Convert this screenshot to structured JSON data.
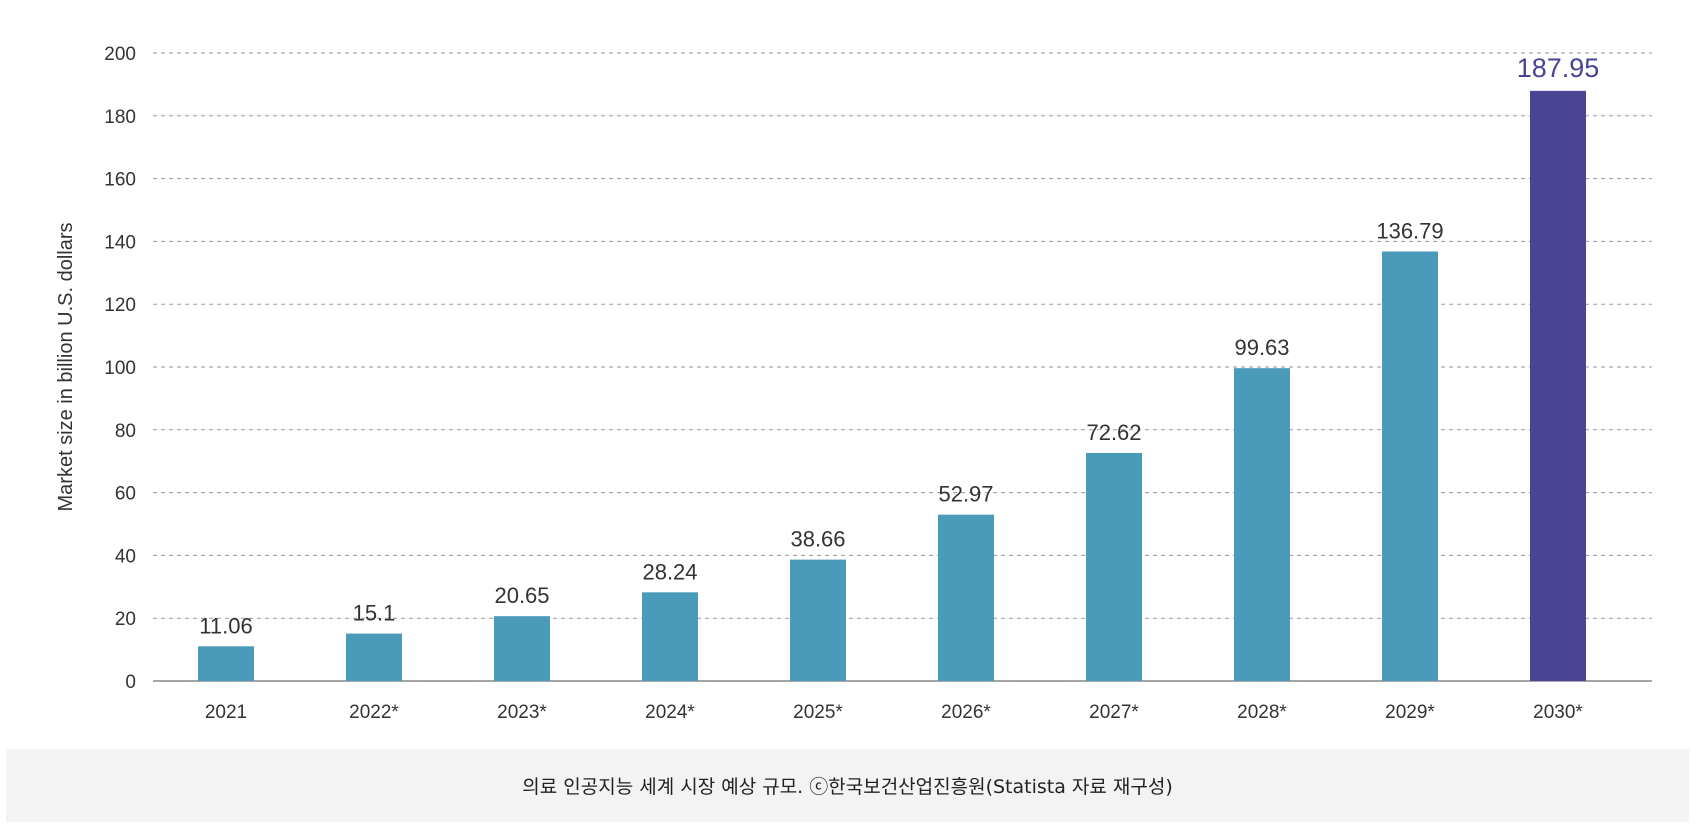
{
  "chart_data": {
    "type": "bar",
    "categories": [
      "2021",
      "2022*",
      "2023*",
      "2024*",
      "2025*",
      "2026*",
      "2027*",
      "2028*",
      "2029*",
      "2030*"
    ],
    "values": [
      11.06,
      15.1,
      20.65,
      28.24,
      38.66,
      52.97,
      72.62,
      99.63,
      136.79,
      187.95
    ],
    "data_labels": [
      "11.06",
      "15.1",
      "20.65",
      "28.24",
      "38.66",
      "52.97",
      "72.62",
      "99.63",
      "136.79",
      "187.95"
    ],
    "ylabel": "Market size in billion U.S. dollars",
    "ylim": [
      0,
      200
    ],
    "yticks": [
      "0",
      "20",
      "40",
      "60",
      "80",
      "100",
      "120",
      "140",
      "160",
      "180",
      "200"
    ],
    "grid": true,
    "colors": {
      "bar": "#4a9ab9",
      "highlight_bar": "#4a4495"
    },
    "highlight_index": 9
  },
  "caption": "의료 인공지능 세계 시장 예상 규모. ⓒ한국보건산업진흥원(Statista 자료 재구성)"
}
